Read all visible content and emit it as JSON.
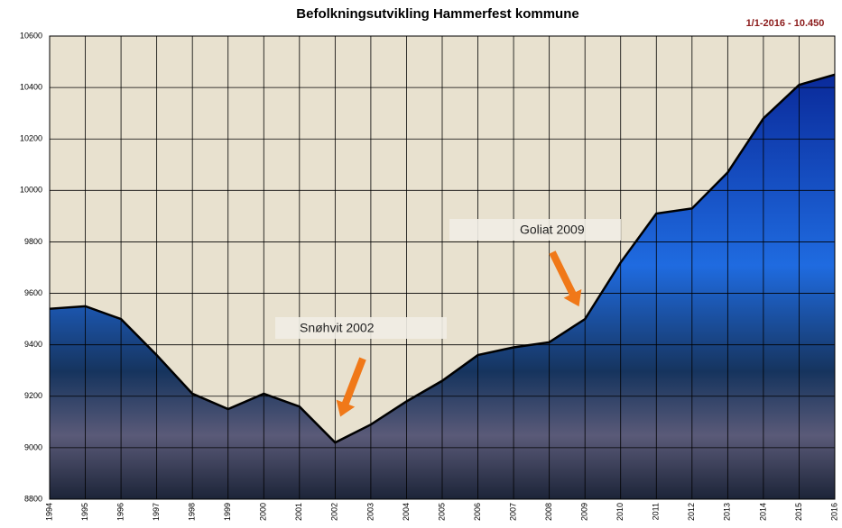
{
  "chart_data": {
    "type": "area",
    "title": "Befolkningsutvikling Hammerfest kommune",
    "subtitle": "1/1-2016 - 10.450",
    "x": [
      1994,
      1995,
      1996,
      1997,
      1998,
      1999,
      2000,
      2001,
      2002,
      2003,
      2004,
      2005,
      2006,
      2007,
      2008,
      2009,
      2010,
      2011,
      2012,
      2013,
      2014,
      2015,
      2016
    ],
    "series": [
      {
        "color": "#000000",
        "fill": "#1f5fc8",
        "values": [
          9540,
          9550,
          9500,
          9360,
          9210,
          9150,
          9210,
          9160,
          9020,
          9090,
          9180,
          9260,
          9360,
          9390,
          9410,
          9500,
          9720,
          9910,
          9930,
          10070,
          10280,
          10410,
          10450
        ]
      }
    ],
    "xlim": [
      1994,
      2016
    ],
    "xticks": [
      1994,
      1995,
      1996,
      1997,
      1998,
      1999,
      2000,
      2001,
      2002,
      2003,
      2004,
      2005,
      2006,
      2007,
      2008,
      2009,
      2010,
      2011,
      2012,
      2013,
      2014,
      2015,
      2016
    ],
    "ylim": [
      8800,
      10600
    ],
    "yticks": [
      8800,
      9000,
      9200,
      9400,
      9600,
      9800,
      10000,
      10200,
      10400,
      10600
    ],
    "grid": true,
    "background": "#e8e1cf",
    "annotations": [
      "Snøhvit 2002",
      "Goliat 2009"
    ]
  }
}
